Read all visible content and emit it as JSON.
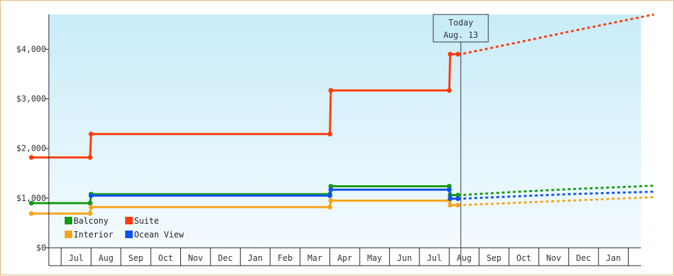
{
  "chart_data": {
    "type": "line",
    "title": "",
    "xlabel": "",
    "ylabel": "",
    "ylim": [
      0,
      4700
    ],
    "y_ticks": [
      0,
      1000,
      2000,
      3000,
      4000
    ],
    "y_tick_labels": [
      "$0",
      "$1,000",
      "$2,000",
      "$3,000",
      "$4,000"
    ],
    "x_tick_labels": [
      "Jul",
      "Aug",
      "Sep",
      "Oct",
      "Nov",
      "Dec",
      "Jan",
      "Feb",
      "Mar",
      "Apr",
      "May",
      "Jun",
      "Jul",
      "Aug",
      "Sep",
      "Oct",
      "Nov",
      "Dec",
      "Jan"
    ],
    "grid": false,
    "legend_position": "bottom-left",
    "today_marker": {
      "label_line1": "Today",
      "label_line2": "Aug. 13",
      "x": "2024-08-13"
    },
    "series": [
      {
        "name": "Balcony",
        "color": "#139a13",
        "x": [
          "2023-06-01",
          "2023-07-31",
          "2023-08-01",
          "2024-04-01",
          "2024-04-02",
          "2024-08-01",
          "2024-08-02",
          "2024-08-10"
        ],
        "values": [
          900,
          900,
          1080,
          1080,
          1240,
          1240,
          1060,
          1060
        ],
        "forecast_x": [
          "2024-08-13",
          "2024-10-01",
          "2024-12-01",
          "2025-02-25"
        ],
        "forecast_values": [
          1060,
          1120,
          1180,
          1250
        ]
      },
      {
        "name": "Suite",
        "color": "#ff3b0a",
        "x": [
          "2023-06-01",
          "2023-07-31",
          "2023-08-01",
          "2024-04-01",
          "2024-04-02",
          "2024-08-01",
          "2024-08-02",
          "2024-08-10"
        ],
        "values": [
          1820,
          1820,
          2290,
          2290,
          3170,
          3170,
          3900,
          3900
        ],
        "forecast_x": [
          "2024-08-13",
          "2024-10-01",
          "2024-12-01",
          "2025-02-25"
        ],
        "forecast_values": [
          3900,
          4100,
          4350,
          4700
        ]
      },
      {
        "name": "Interior",
        "color": "#f7a51b",
        "x": [
          "2023-06-01",
          "2023-07-31",
          "2023-08-01",
          "2024-04-01",
          "2024-04-02",
          "2024-08-01",
          "2024-08-02",
          "2024-08-10"
        ],
        "values": [
          690,
          690,
          820,
          820,
          950,
          950,
          860,
          860
        ],
        "forecast_x": [
          "2024-08-13",
          "2024-10-01",
          "2024-12-01",
          "2025-02-25"
        ],
        "forecast_values": [
          860,
          900,
          950,
          1020
        ]
      },
      {
        "name": "Ocean View",
        "color": "#1150f0",
        "x": [
          "2023-08-01",
          "2024-04-01",
          "2024-04-02",
          "2024-08-01",
          "2024-08-02",
          "2024-08-10"
        ],
        "values": [
          1050,
          1050,
          1170,
          1170,
          990,
          990
        ],
        "forecast_x": [
          "2024-08-13",
          "2024-10-01",
          "2024-12-01",
          "2025-02-25"
        ],
        "forecast_values": [
          990,
          1030,
          1080,
          1130
        ]
      }
    ]
  }
}
